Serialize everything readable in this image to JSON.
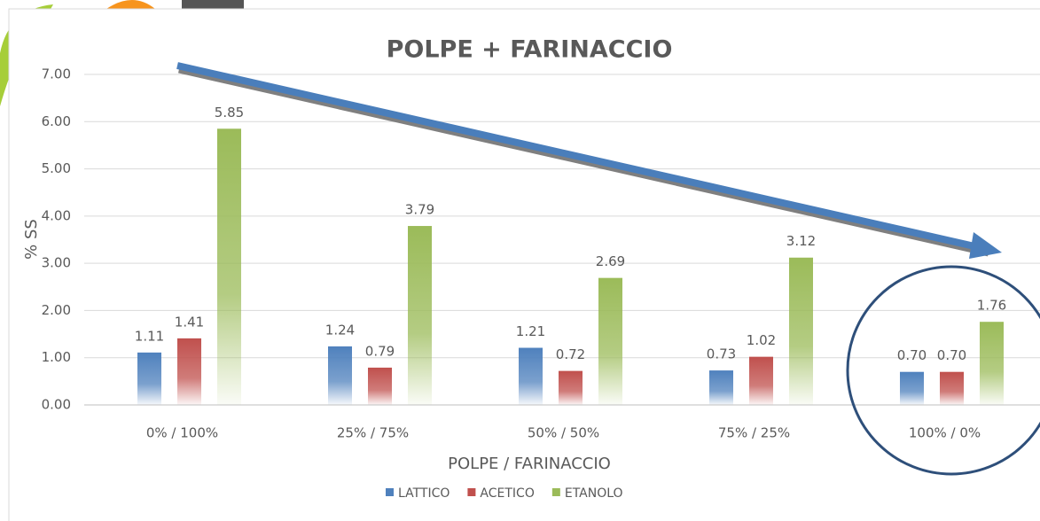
{
  "chart_data": {
    "type": "bar",
    "title": "POLPE + FARINACCIO",
    "xlabel": "POLPE / FARINACCIO",
    "ylabel": "% SS",
    "categories": [
      "0% / 100%",
      "25% / 75%",
      "50% / 50%",
      "75% / 25%",
      "100% / 0%"
    ],
    "series": [
      {
        "name": "LATTICO",
        "color": "#4f81bd",
        "values": [
          1.11,
          1.24,
          1.21,
          0.73,
          0.7
        ],
        "value_labels": [
          "1.11",
          "1.24",
          "1.21",
          "0.73",
          "0.70"
        ]
      },
      {
        "name": "ACETICO",
        "color": "#c0504d",
        "values": [
          1.41,
          0.79,
          0.72,
          1.02,
          0.7
        ],
        "value_labels": [
          "1.41",
          "0.79",
          "0.72",
          "1.02",
          "0.70"
        ]
      },
      {
        "name": "ETANOLO",
        "color": "#9bbb59",
        "values": [
          5.85,
          3.79,
          2.69,
          3.12,
          1.76
        ],
        "value_labels": [
          "5.85",
          "3.79",
          "2.69",
          "3.12",
          "1.76"
        ]
      }
    ],
    "ylim": [
      0,
      7
    ],
    "yticks": [
      {
        "value": 0,
        "label": "0.00"
      },
      {
        "value": 1,
        "label": "1.00"
      },
      {
        "value": 2,
        "label": "2.00"
      },
      {
        "value": 3,
        "label": "3.00"
      },
      {
        "value": 4,
        "label": "4.00"
      },
      {
        "value": 5,
        "label": "5.00"
      },
      {
        "value": 6,
        "label": "6.00"
      },
      {
        "value": 7,
        "label": "7.00"
      }
    ],
    "grid": true,
    "legend": "bottom"
  }
}
